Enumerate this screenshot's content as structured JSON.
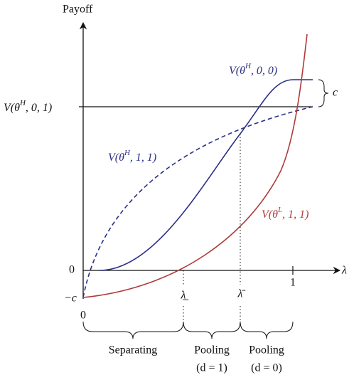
{
  "axis": {
    "y_label": "Payoff",
    "x_label": "λ",
    "zero": "0",
    "minus_c": "−c",
    "x_zero": "0",
    "x_one": "1",
    "c_gap": "c",
    "lambda_low": "λ̲",
    "lambda_high": "λ̄"
  },
  "lines": {
    "v_h01": {
      "base": "V(θ",
      "sup": "H",
      "rest": ", 0, 1)"
    },
    "v_h00": {
      "base": "V(θ",
      "sup": "H",
      "rest": ", 0, 0)"
    },
    "v_h11": {
      "base": "V(θ",
      "sup": "H",
      "rest": ", 1, 1)"
    },
    "v_l11": {
      "base": "V(θ",
      "sup": "L",
      "rest": ", 1, 1)"
    }
  },
  "regions": [
    {
      "label": "Separating"
    },
    {
      "label": "Pooling",
      "note": "(d = 1)"
    },
    {
      "label": "Pooling",
      "note": "(d = 0)"
    }
  ]
}
